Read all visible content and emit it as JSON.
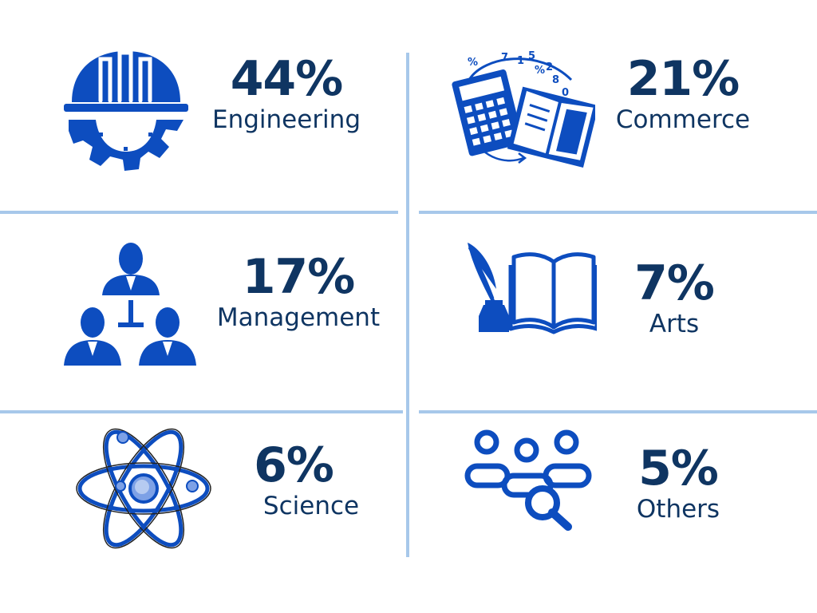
{
  "colors": {
    "primary": "#0d4dbf",
    "text": "#0f3562",
    "divider": "#a7c8ea"
  },
  "stats": [
    {
      "value": "44%",
      "label": "Engineering",
      "icon": "engineering-helmet-gear-icon"
    },
    {
      "value": "21%",
      "label": "Commerce",
      "icon": "calculator-book-icon"
    },
    {
      "value": "17%",
      "label": "Management",
      "icon": "team-hierarchy-icon"
    },
    {
      "value": "7%",
      "label": "Arts",
      "icon": "quill-book-icon"
    },
    {
      "value": "6%",
      "label": "Science",
      "icon": "atom-icon"
    },
    {
      "value": "5%",
      "label": "Others",
      "icon": "people-search-icon"
    }
  ]
}
